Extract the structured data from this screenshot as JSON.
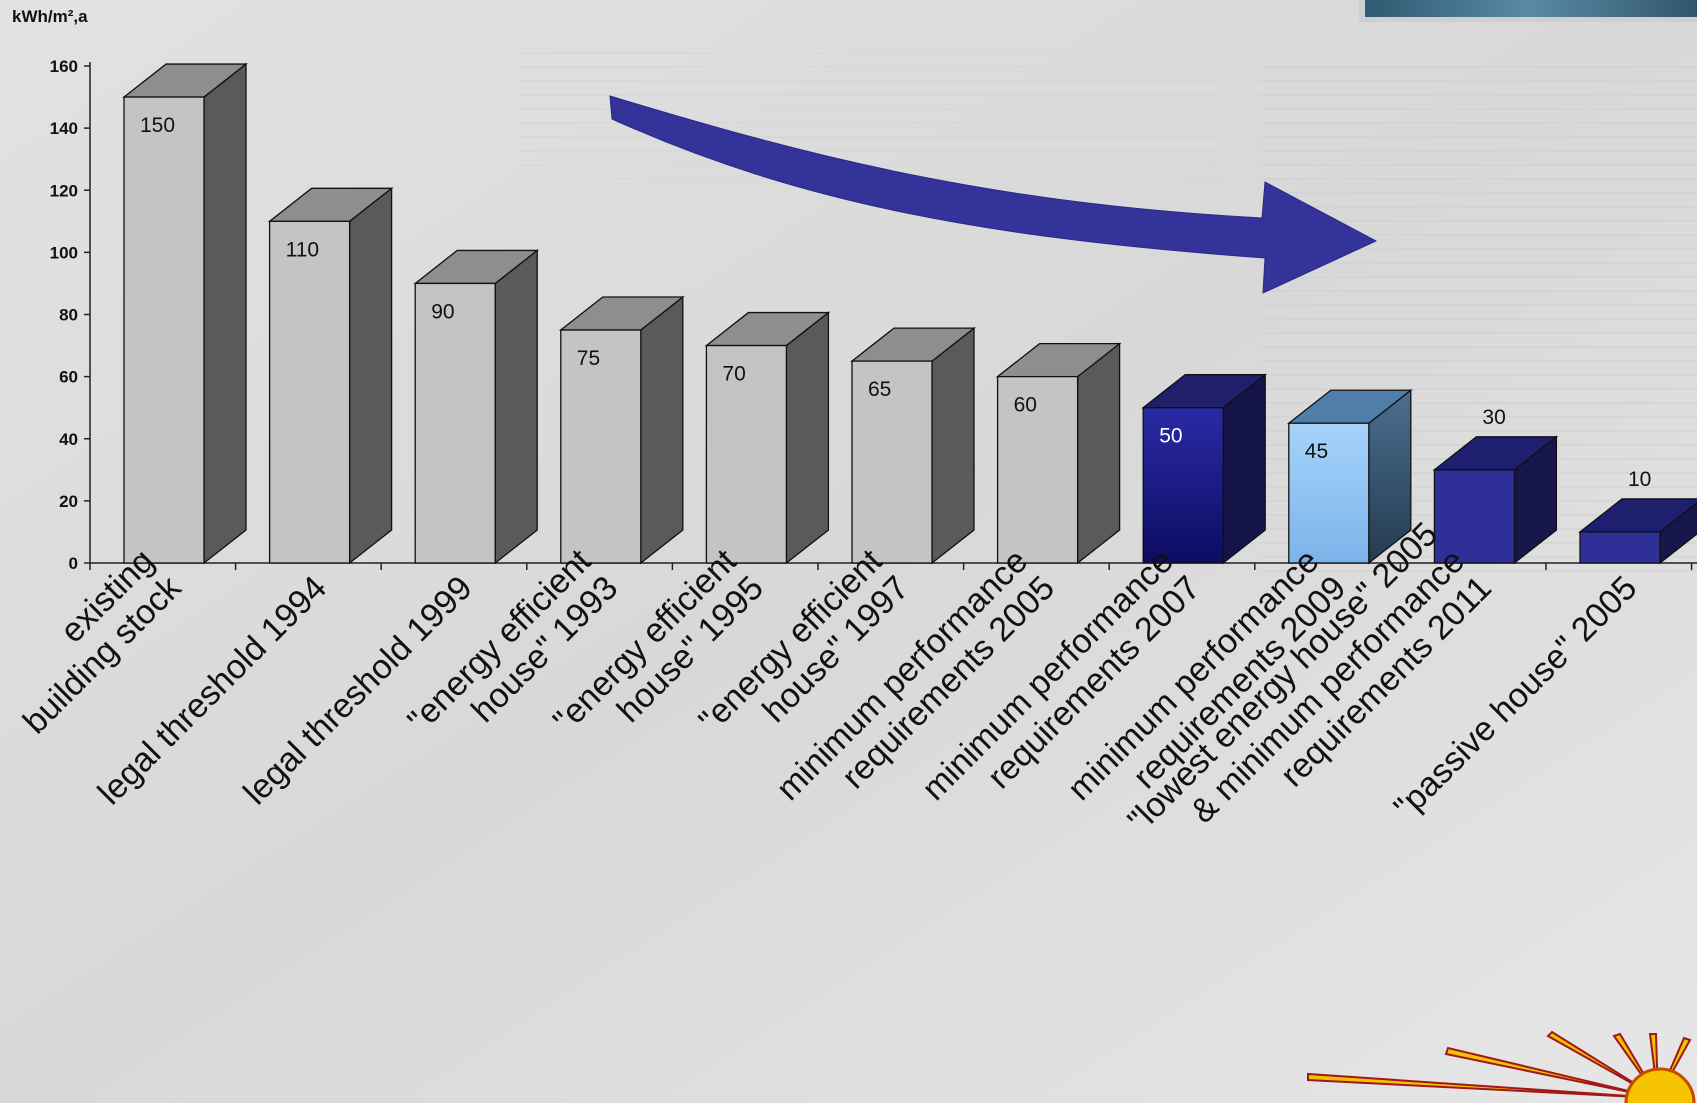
{
  "chart_data": {
    "type": "bar",
    "ylabel": "kWh/m²,a",
    "ylim": [
      0,
      160
    ],
    "yticks": [
      0,
      20,
      40,
      60,
      80,
      100,
      120,
      140,
      160
    ],
    "grid": false,
    "categories": [
      [
        "existing",
        "building stock"
      ],
      [
        "legal threshold 1994"
      ],
      [
        "legal threshold 1999"
      ],
      [
        "\"energy efficient",
        "house\" 1993"
      ],
      [
        "\"energy efficient",
        "house\" 1995"
      ],
      [
        "\"energy efficient",
        "house\" 1997"
      ],
      [
        "minimum performance",
        "requirements 2005"
      ],
      [
        "minimum performance",
        "requirements 2007"
      ],
      [
        "minimum performance",
        "requirements 2009"
      ],
      [
        "\"lowest energy house\" 2005",
        "& minimum performance",
        "requirements 2011"
      ],
      [
        "\"passive house\" 2005"
      ]
    ],
    "values": [
      150,
      110,
      90,
      75,
      70,
      65,
      60,
      50,
      45,
      30,
      10
    ],
    "value_labels": [
      "150",
      "110",
      "90",
      "75",
      "70",
      "65",
      "60",
      "50",
      "45",
      "30",
      "10"
    ],
    "bar_colors": [
      "#c4c4c4",
      "#c4c4c4",
      "#c4c4c4",
      "#c4c4c4",
      "#c4c4c4",
      "#c4c4c4",
      "#c4c4c4",
      "#1c1c86",
      "#92c4f2",
      "#2f2f98",
      "#2f2f98"
    ],
    "trend_arrow": "decreasing",
    "trend_arrow_color": "#33339a"
  }
}
